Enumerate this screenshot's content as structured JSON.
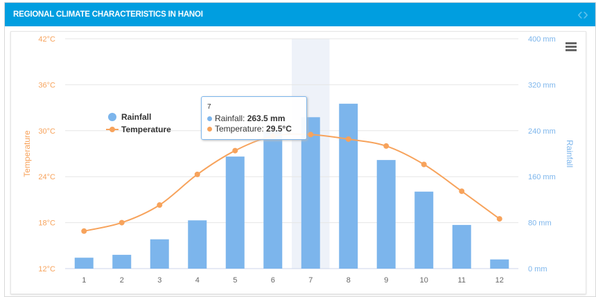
{
  "header": {
    "title": "REGIONAL CLIMATE CHARACTERISTICS IN HANOI",
    "nav_icon": "chevrons-left-right-icon"
  },
  "chart_data": {
    "type": "bar+line",
    "categories": [
      "1",
      "2",
      "3",
      "4",
      "5",
      "6",
      "7",
      "8",
      "9",
      "10",
      "11",
      "12"
    ],
    "series": [
      {
        "name": "Rainfall",
        "type": "column",
        "axis": "right",
        "color": "#7cb5ec",
        "unit": "mm",
        "values": [
          19,
          24,
          51,
          84,
          195,
          239,
          263.5,
          287,
          189,
          134,
          76,
          16
        ]
      },
      {
        "name": "Temperature",
        "type": "spline",
        "axis": "left",
        "color": "#f7a35c",
        "unit": "°C",
        "values": [
          16.9,
          18.0,
          20.3,
          24.3,
          27.4,
          29.3,
          29.5,
          28.9,
          28.0,
          25.6,
          22.1,
          18.5
        ]
      }
    ],
    "y_left": {
      "label": "Temperature",
      "range": [
        12,
        42
      ],
      "ticks": [
        "12°C",
        "18°C",
        "24°C",
        "30°C",
        "36°C",
        "42°C"
      ]
    },
    "y_right": {
      "label": "Rainfall",
      "range": [
        0,
        400
      ],
      "ticks": [
        "0 mm",
        "80 mm",
        "160 mm",
        "240 mm",
        "320 mm",
        "400 mm"
      ]
    },
    "grid": true,
    "legend": "left",
    "highlighted_category": "7",
    "tooltip": {
      "title": "7",
      "rainfall_label": "Rainfall: ",
      "rainfall_value": "263.5 mm",
      "temp_label": "Temperature: ",
      "temp_value": "29.5°C"
    }
  }
}
